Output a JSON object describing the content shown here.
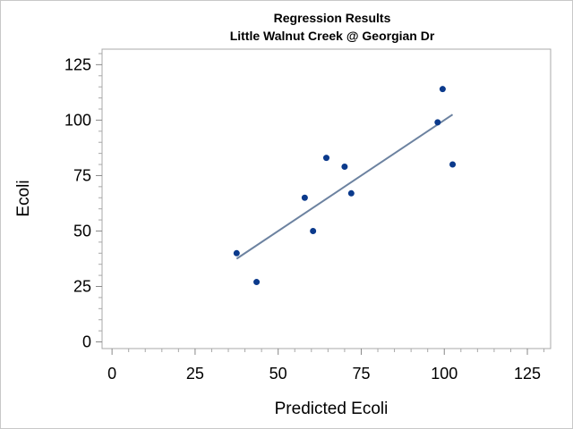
{
  "chart_data": {
    "type": "scatter",
    "title": "Regression Results",
    "subtitle": "Little Walnut Creek @ Georgian Dr",
    "xlabel": "Predicted Ecoli",
    "ylabel": "Ecoli",
    "xlim": [
      -3,
      132
    ],
    "ylim": [
      -3,
      132
    ],
    "x_ticks": [
      0,
      25,
      50,
      75,
      100,
      125
    ],
    "y_ticks": [
      0,
      25,
      50,
      75,
      100,
      125
    ],
    "minor_tick_step": 5,
    "grid": false,
    "legend": "none",
    "point_color": "#0b3a8c",
    "line_color": "#6c82a0",
    "points": [
      {
        "x": 37.5,
        "y": 40
      },
      {
        "x": 43.5,
        "y": 27
      },
      {
        "x": 58,
        "y": 65
      },
      {
        "x": 60.5,
        "y": 50
      },
      {
        "x": 64.5,
        "y": 83
      },
      {
        "x": 70,
        "y": 79
      },
      {
        "x": 72,
        "y": 67
      },
      {
        "x": 98,
        "y": 99
      },
      {
        "x": 99.5,
        "y": 114
      },
      {
        "x": 102.5,
        "y": 80
      }
    ],
    "fit_line": {
      "x": [
        37.5,
        102.5
      ],
      "y": [
        37.5,
        102.5
      ]
    }
  }
}
